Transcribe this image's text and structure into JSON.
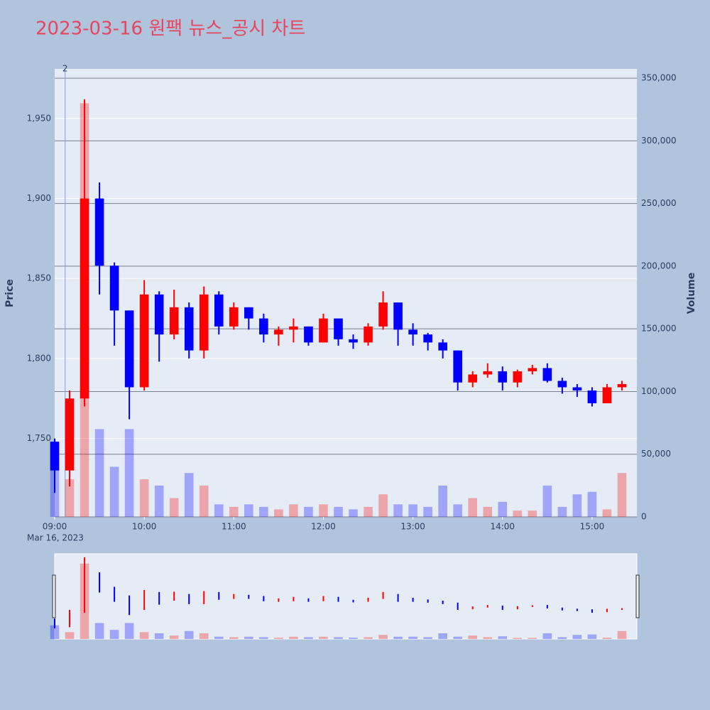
{
  "chart_data": {
    "type": "candlestick",
    "title": "2023-03-16 원팩 뉴스_공시 차트",
    "y_label": "Price",
    "y2_label": "Volume",
    "x_sublabel": "Mar 16, 2023",
    "up_color": "#ff0000",
    "down_color": "#0000ff",
    "xlim": [
      "09:00",
      "15:30"
    ],
    "xticks": [
      "09:00",
      "10:00",
      "11:00",
      "12:00",
      "13:00",
      "14:00",
      "15:00"
    ],
    "ylim": [
      1701,
      1981
    ],
    "yticks": [
      {
        "value": 1750,
        "label": "1,750"
      },
      {
        "value": 1800,
        "label": "1,800"
      },
      {
        "value": 1850,
        "label": "1,850"
      },
      {
        "value": 1900,
        "label": "1,900"
      },
      {
        "value": 1950,
        "label": "1,950"
      }
    ],
    "y2lim": [
      0,
      357400
    ],
    "y2ticks": [
      0,
      {
        "value": 50000,
        "label": "50,000"
      },
      {
        "value": 100000,
        "label": "100,000"
      },
      {
        "value": 150000,
        "label": "150,000"
      },
      {
        "value": 200000,
        "label": "200,000"
      },
      {
        "value": 250000,
        "label": "250,000"
      },
      {
        "value": 300000,
        "label": "300,000"
      },
      {
        "value": 350000,
        "label": "350,000"
      }
    ],
    "annotations": [
      {
        "x": "09:07",
        "text": "2"
      }
    ],
    "x": [
      "09:00",
      "09:10",
      "09:20",
      "09:30",
      "09:40",
      "09:50",
      "10:00",
      "10:10",
      "10:20",
      "10:30",
      "10:40",
      "10:50",
      "11:00",
      "11:10",
      "11:20",
      "11:30",
      "11:40",
      "11:50",
      "12:00",
      "12:10",
      "12:20",
      "12:30",
      "12:40",
      "12:50",
      "13:00",
      "13:10",
      "13:20",
      "13:30",
      "13:40",
      "13:50",
      "14:00",
      "14:10",
      "14:20",
      "14:30",
      "14:40",
      "14:50",
      "15:00",
      "15:10",
      "15:20"
    ],
    "open": [
      1748,
      1730,
      1775,
      1900,
      1858,
      1830,
      1782,
      1840,
      1815,
      1832,
      1805,
      1840,
      1820,
      1832,
      1825,
      1815,
      1818,
      1820,
      1810,
      1825,
      1812,
      1810,
      1820,
      1835,
      1818,
      1815,
      1810,
      1805,
      1785,
      1790,
      1792,
      1785,
      1792,
      1794,
      1786,
      1782,
      1780,
      1772,
      1782
    ],
    "high": [
      1750,
      1780,
      1962,
      1910,
      1860,
      1830,
      1849,
      1842,
      1843,
      1835,
      1845,
      1842,
      1835,
      1832,
      1828,
      1820,
      1825,
      1820,
      1828,
      1825,
      1815,
      1822,
      1842,
      1835,
      1822,
      1816,
      1812,
      1805,
      1792,
      1797,
      1795,
      1793,
      1796,
      1797,
      1788,
      1784,
      1782,
      1784,
      1786
    ],
    "low": [
      1716,
      1720,
      1770,
      1840,
      1808,
      1762,
      1780,
      1798,
      1812,
      1800,
      1800,
      1815,
      1818,
      1818,
      1810,
      1808,
      1810,
      1808,
      1810,
      1808,
      1806,
      1808,
      1818,
      1808,
      1808,
      1805,
      1800,
      1780,
      1782,
      1788,
      1780,
      1782,
      1790,
      1785,
      1778,
      1776,
      1770,
      1772,
      1780
    ],
    "close": [
      1730,
      1775,
      1900,
      1858,
      1830,
      1782,
      1840,
      1815,
      1832,
      1805,
      1840,
      1820,
      1832,
      1825,
      1815,
      1818,
      1820,
      1810,
      1825,
      1812,
      1810,
      1820,
      1835,
      1818,
      1815,
      1810,
      1805,
      1785,
      1790,
      1792,
      1785,
      1792,
      1794,
      1786,
      1782,
      1780,
      1772,
      1782,
      1784
    ],
    "volume": [
      60000,
      30000,
      330000,
      70000,
      40000,
      70000,
      30000,
      25000,
      15000,
      35000,
      25000,
      10000,
      8000,
      10000,
      8000,
      6000,
      10000,
      8000,
      10000,
      8000,
      6000,
      8000,
      18000,
      10000,
      10000,
      8000,
      25000,
      10000,
      15000,
      8000,
      12000,
      5000,
      5000,
      25000,
      8000,
      18000,
      20000,
      6000,
      35000
    ]
  }
}
